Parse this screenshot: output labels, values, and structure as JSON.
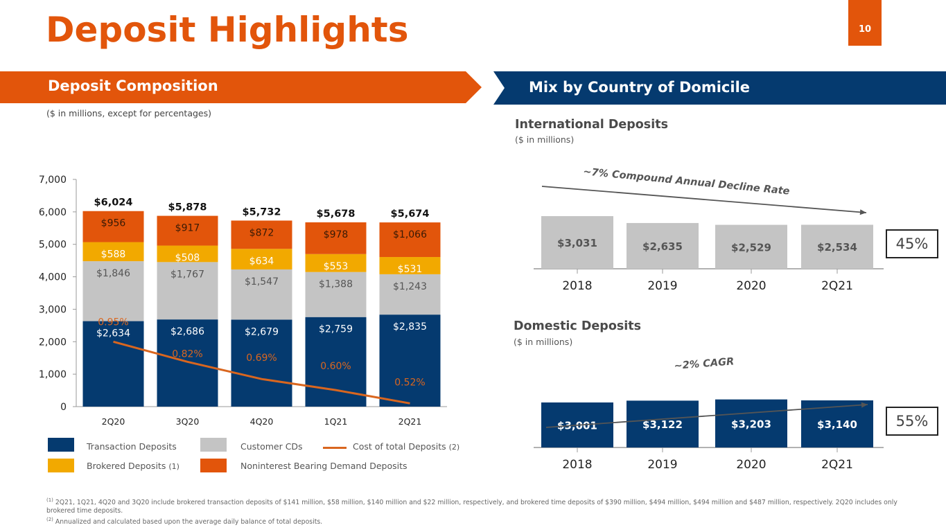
{
  "header": {
    "title": "Deposit Highlights",
    "page_number": "10"
  },
  "left_panel": {
    "banner": "Deposit Composition",
    "subnote": "($ in millions, except for percentages)"
  },
  "right_panel": {
    "banner": "Mix by Country of Domicile",
    "international": {
      "title": "International Deposits",
      "subtitle": "($ in millions)",
      "trend_label": "~7% Compound Annual Decline Rate",
      "share": "45%"
    },
    "domestic": {
      "title": "Domestic Deposits",
      "subtitle": "($ in millions)",
      "trend_label": "~2% CAGR",
      "share": "55%"
    }
  },
  "legend": {
    "transaction": "Transaction Deposits",
    "customer_cds": "Customer CDs",
    "cost": "Cost of total Deposits",
    "cost_note": "(2)",
    "brokered": "Brokered Deposits",
    "brokered_note": "(1)",
    "nonint": "Noninterest Bearing Demand Deposits"
  },
  "footnotes": {
    "n1_mark": "(1)",
    "n1": " 2Q21, 1Q21, 4Q20 and 3Q20 include brokered transaction deposits of $141 million, $58 million, $140 million and $22 million, respectively, and brokered time deposits of $390 million, $494 million, $494 million and $487 million, respectively. 2Q20 includes only brokered time deposits.",
    "n2_mark": "(2)",
    "n2": " Annualized and calculated based upon the average daily balance of total deposits."
  },
  "colors": {
    "orange": "#e2550b",
    "navy": "#053a6f",
    "gray": "#c4c4c4",
    "gold": "#f2a900",
    "line": "#d9661f"
  },
  "chart_data": [
    {
      "type": "bar",
      "stacked": true,
      "title": "Deposit Composition",
      "categories": [
        "2Q20",
        "3Q20",
        "4Q20",
        "1Q21",
        "2Q21"
      ],
      "ylim": [
        0,
        7000
      ],
      "yticks": [
        "0",
        "1,000",
        "2,000",
        "3,000",
        "4,000",
        "5,000",
        "6,000",
        "7,000"
      ],
      "ytick_values": [
        0,
        1000,
        2000,
        3000,
        4000,
        5000,
        6000,
        7000
      ],
      "series": [
        {
          "name": "Transaction Deposits",
          "values": [
            2634,
            2686,
            2679,
            2759,
            2835
          ],
          "labels": [
            "$2,634",
            "$2,686",
            "$2,679",
            "$2,759",
            "$2,835"
          ]
        },
        {
          "name": "Customer CDs",
          "values": [
            1846,
            1767,
            1547,
            1388,
            1243
          ],
          "labels": [
            "$1,846",
            "$1,767",
            "$1,547",
            "$1,388",
            "$1,243"
          ]
        },
        {
          "name": "Brokered Deposits (1)",
          "values": [
            588,
            508,
            634,
            553,
            531
          ],
          "labels": [
            "$588",
            "$508",
            "$634",
            "$553",
            "$531"
          ]
        },
        {
          "name": "Noninterest Bearing Demand Deposits",
          "values": [
            956,
            917,
            872,
            978,
            1066
          ],
          "labels": [
            "$956",
            "$917",
            "$872",
            "$978",
            "$1,066"
          ]
        }
      ],
      "totals": [
        "$6,024",
        "$5,878",
        "$5,732",
        "$5,678",
        "$5,674"
      ],
      "line_series": {
        "name": "Cost of total Deposits (2)",
        "values": [
          0.95,
          0.82,
          0.69,
          0.6,
          0.52
        ],
        "labels": [
          "0.95%",
          "0.82%",
          "0.69%",
          "0.60%",
          "0.52%"
        ],
        "plotted_axis_values": [
          2000,
          1380,
          850,
          510,
          100
        ]
      },
      "legend": "bottom"
    },
    {
      "type": "bar",
      "title": "International Deposits",
      "categories": [
        "2018",
        "2019",
        "2020",
        "2Q21"
      ],
      "values": [
        3031,
        2635,
        2529,
        2534
      ],
      "labels": [
        "$3,031",
        "$2,635",
        "$2,529",
        "$2,534"
      ],
      "annotation": "~7% Compound Annual Decline Rate"
    },
    {
      "type": "bar",
      "title": "Domestic Deposits",
      "categories": [
        "2018",
        "2019",
        "2020",
        "2Q21"
      ],
      "values": [
        3001,
        3122,
        3203,
        3140
      ],
      "labels": [
        "$3,001",
        "$3,122",
        "$3,203",
        "$3,140"
      ],
      "annotation": "~2% CAGR"
    }
  ]
}
